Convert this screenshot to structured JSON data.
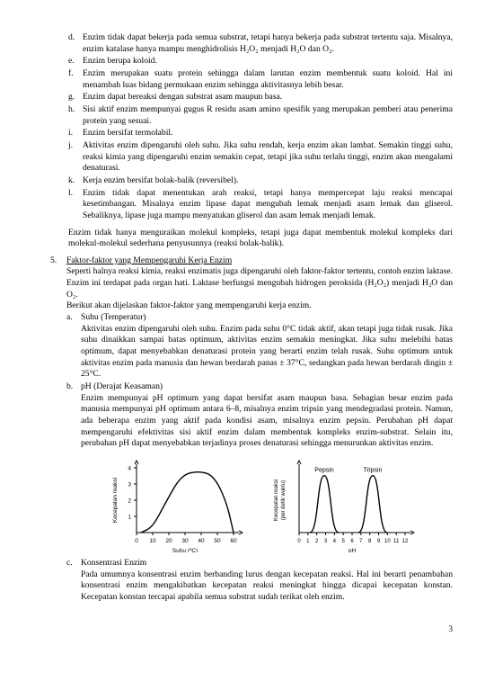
{
  "items_dl": [
    {
      "mk": "d.",
      "text": "Enzim tidak dapat bekerja pada semua substrat, tetapi hanya bekerja pada substrat tertentu saja. Misalnya, enzim katalase hanya mampu menghidrolisis H₂O₂ menjadi H₂O dan O₂."
    },
    {
      "mk": "e.",
      "text": "Enzim berupa koloid."
    },
    {
      "mk": "f.",
      "text": "Enzim merupakan suatu protein sehingga dalam larutan enzim membentuk suatu koloid. Hal ini menambah luas bidang permukaan enzim sehingga aktivitasnya lebih besar."
    },
    {
      "mk": "g.",
      "text": "Enzim dapat bereaksi dengan substrat asam maupun basa."
    },
    {
      "mk": "h.",
      "text": "Sisi aktif enzim mempunyai gugus R residu asam amino spesifik yang merupakan pemberi atau penerima protein yang sesuai."
    },
    {
      "mk": "i.",
      "text": "Enzim bersifat termolabil."
    },
    {
      "mk": "j.",
      "text": "Aktivitas enzim dipengaruhi oleh suhu. Jika suhu rendah, kerja enzim akan lambat. Semakin tinggi suhu, reaksi kimia yang dipengaruhi enzim semakin cepat, tetapi jika suhu terlalu tinggi, enzim akan mengalami denaturasi."
    },
    {
      "mk": "k.",
      "text": "Kerja enzim bersifat bolak-balik (reversibel)."
    },
    {
      "mk": "l.",
      "text": "Enzim tidak dapat menentukan arah reaksi, tetapi hanya mempercepat laju reaksi mencapai kesetimbangan. Misalnya enzim lipase dapat mengubah lemak menjadi asam lemak dan gliserol. Sebaliknya, lipase juga mampu menyatukan gliserol dan asam lemak menjadi lemak."
    }
  ],
  "post_list": "Enzim tidak hanya menguraikan molekul kompleks, tetapi juga dapat membentuk molekul kompleks dari molekul-molekul sederhana penyusunnya (reaksi bolak-balik).",
  "sec5": {
    "mk": "5.",
    "heading": "Faktor-faktor yang Mempengaruhi Kerja Enzim",
    "intro": "Seperti halnya reaksi kimia, reaksi enzimatis juga dipengaruhi oleh faktor-faktor tertentu, contoh enzim laktase. Enzim ini terdapat pada organ hati. Laktase berfungsi mengubah hidrogen peroksida (H₂O₂) menjadi H₂O dan O₂.",
    "intro2": "Berikut akan dijelaskan faktor-faktor yang mempengaruhi kerja enzim.",
    "items": [
      {
        "mk": "a.",
        "title": "Suhu (Temperatur)",
        "text": "Aktivitas enzim dipengaruhi oleh suhu. Enzim pada suhu 0°C tidak aktif, akan tetapi juga tidak rusak. Jika suhu dinaikkan sampai batas optimum, aktivitas enzim semakin meningkat. Jika suhu melebihi batas optimum, dapat menyebabkan denaturasi protein yang berarti enzim telah rusak. Suhu optimum untuk aktivitas enzim pada manusia dan hewan berdarah panas ± 37°C, sedangkan pada hewan berdarah dingin ± 25°C."
      },
      {
        "mk": "b.",
        "title": "pH (Derajat Keasaman)",
        "text": "Enzim mempunyai pH optimum yang dapat bersifat asam maupun basa. Sebagian besar enzim pada manusia mempunyai pH optimum antara 6–8, misalnya enzim tripsin yang mendegradasi protein. Namun, ada beberapa enzim yang aktif pada kondisi asam, misalnya enzim pepsin. Perubahan pH dapat mempengaruhi efektivitas sisi aktif enzim dalam membentuk kompleks enzim-substrat. Selain itu, perubahan pH dapat menyebabkan terjadinya proses denaturasi sehingga menurunkan aktivitas enzim."
      },
      {
        "mk": "c.",
        "title": "Konsentrasi Enzim",
        "text": "Pada umumnya konsentrasi enzim berbanding lurus dengan kecepatan reaksi. Hal ini berarti penambahan konsentrasi enzim mengakibatkan kecepatan reaksi meningkat hingga dicapai kecepatan konstan. Kecepatan konstan tercapai apabila semua substrat sudah terikat oleh enzim."
      }
    ]
  },
  "chart_suhu": {
    "type": "line",
    "xticks": [
      "0",
      "10",
      "20",
      "30",
      "40",
      "50",
      "60"
    ],
    "yticks": [
      "1",
      "2",
      "3",
      "4"
    ],
    "xlabel": "Suhu (ºC)",
    "ylabel": "Kecepatan reaksi",
    "line_color": "#000000",
    "grid_color": "#000000",
    "background": "#ffffff",
    "path_points": [
      [
        5,
        82
      ],
      [
        18,
        76
      ],
      [
        32,
        50
      ],
      [
        50,
        19
      ],
      [
        70,
        15
      ],
      [
        86,
        20
      ],
      [
        100,
        48
      ],
      [
        108,
        82
      ]
    ]
  },
  "chart_ph": {
    "type": "line",
    "xticks": [
      "0",
      "1",
      "2",
      "3",
      "4",
      "5",
      "6",
      "7",
      "8",
      "9",
      "10",
      "11",
      "12"
    ],
    "xlabel": "pH",
    "ylabel_lines": [
      "Kecepatan reaksi",
      "(per detik waktu)"
    ],
    "series": [
      {
        "label": "Pepsin",
        "peak_x": 28,
        "color": "#000000"
      },
      {
        "label": "Tripsin",
        "peak_x": 82,
        "color": "#000000"
      }
    ],
    "grid_color": "#000000",
    "background": "#ffffff"
  },
  "page_number": "3"
}
